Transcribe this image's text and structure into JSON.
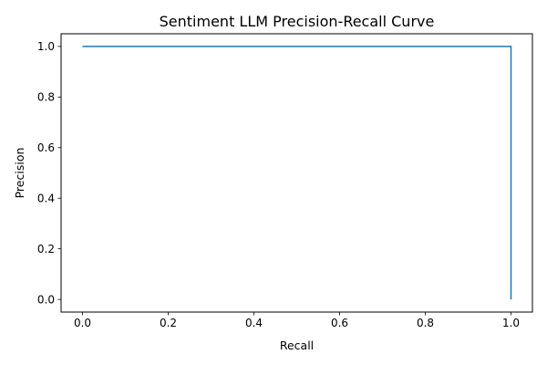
{
  "chart_data": {
    "type": "line",
    "title": "Sentiment LLM Precision-Recall Curve",
    "xlabel": "Recall",
    "ylabel": "Precision",
    "xlim": [
      -0.05,
      1.05
    ],
    "ylim": [
      -0.05,
      1.05
    ],
    "xticks": [
      0.0,
      0.2,
      0.4,
      0.6,
      0.8,
      1.0
    ],
    "yticks": [
      0.0,
      0.2,
      0.4,
      0.6,
      0.8,
      1.0
    ],
    "xtick_labels": [
      "0.0",
      "0.2",
      "0.4",
      "0.6",
      "0.8",
      "1.0"
    ],
    "ytick_labels": [
      "0.0",
      "0.2",
      "0.4",
      "0.6",
      "0.8",
      "1.0"
    ],
    "grid": false,
    "series": [
      {
        "x": [
          0.0,
          1.0,
          1.0
        ],
        "y": [
          1.0,
          1.0,
          0.0
        ],
        "color": "#1f77b4"
      }
    ]
  }
}
